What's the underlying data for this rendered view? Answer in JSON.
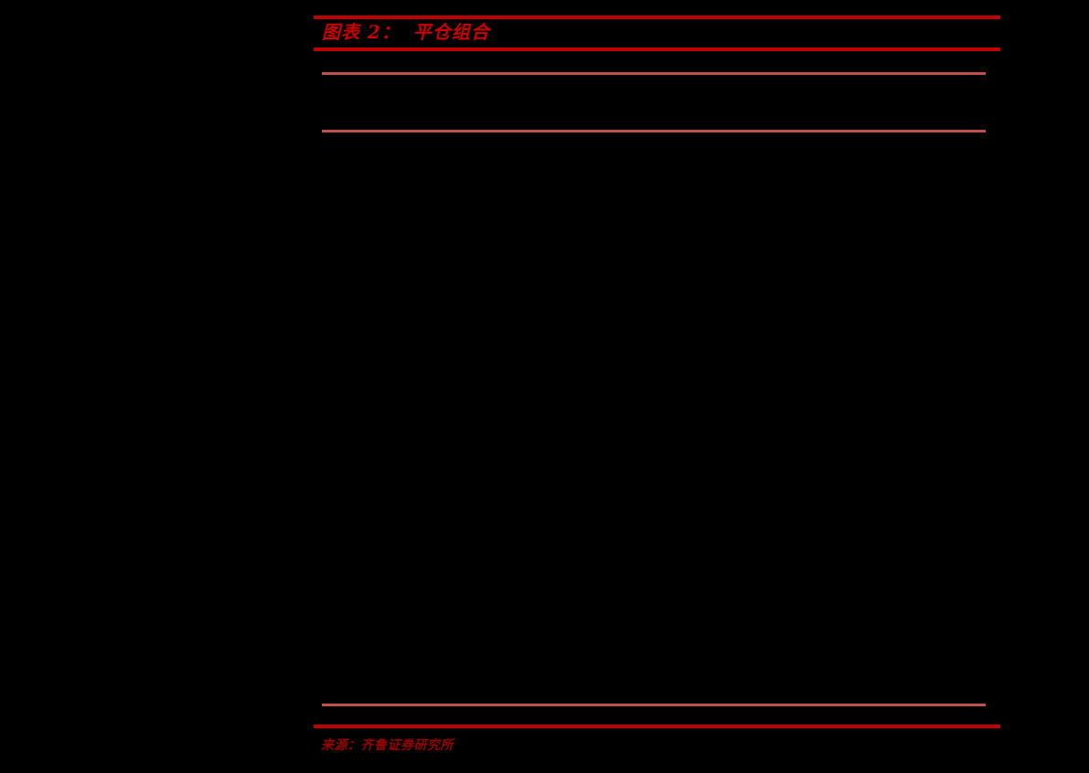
{
  "page": {
    "background_color": "#000000"
  },
  "figure": {
    "label": "图表 2：",
    "title": "平仓组合",
    "caption_color": "#CC0000",
    "frame_rule_color": "#C00000",
    "table_rule_color": "#C0504D",
    "table_content": "empty"
  },
  "source": {
    "text": "来源：齐鲁证券研究所",
    "color": "#990000"
  }
}
